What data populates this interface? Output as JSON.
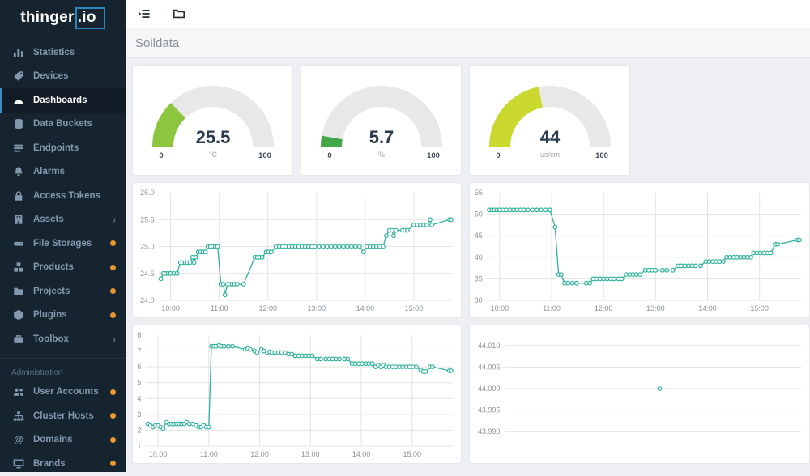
{
  "app": {
    "logo_prefix": "thinger",
    "logo_suffix": ".io"
  },
  "topbar": {
    "icons": [
      "sidebar-toggle-icon",
      "folder-icon"
    ]
  },
  "page": {
    "title": "Soildata"
  },
  "sidebar": {
    "items": [
      {
        "label": "Statistics",
        "icon": "bar-chart"
      },
      {
        "label": "Devices",
        "icon": "tag"
      },
      {
        "label": "Dashboards",
        "icon": "tachometer",
        "active": true
      },
      {
        "label": "Data Buckets",
        "icon": "database"
      },
      {
        "label": "Endpoints",
        "icon": "list"
      },
      {
        "label": "Alarms",
        "icon": "bell"
      },
      {
        "label": "Access Tokens",
        "icon": "lock"
      },
      {
        "label": "Assets",
        "icon": "building",
        "chevron": true
      },
      {
        "label": "File Storages",
        "icon": "hdd",
        "dot": true
      },
      {
        "label": "Products",
        "icon": "boxes",
        "dot": true
      },
      {
        "label": "Projects",
        "icon": "folder",
        "dot": true
      },
      {
        "label": "Plugins",
        "icon": "cube",
        "dot": true
      },
      {
        "label": "Toolbox",
        "icon": "briefcase",
        "chevron": true
      }
    ],
    "section_label": "Administration",
    "admin_items": [
      {
        "label": "User Accounts",
        "icon": "users",
        "dot": true
      },
      {
        "label": "Cluster Hosts",
        "icon": "sitemap",
        "dot": true
      },
      {
        "label": "Domains",
        "icon": "at",
        "dot": true
      },
      {
        "label": "Brands",
        "icon": "desktop",
        "dot": true
      }
    ]
  },
  "colors": {
    "accent_blue": "#3c8dbc",
    "logo_blue": "#2e86c1",
    "badge_dot": "#e8962e",
    "line": "#2fb39b",
    "grid": "#e3e3e3",
    "tick_text": "#8c939c",
    "gauge_track": "#e8e8e8",
    "gauge_value_text": "#2b3b4e"
  },
  "gauges": [
    {
      "value": "25.5",
      "unit": "°C",
      "min": "0",
      "max": "100",
      "percent": 25.5,
      "color": "#8cc63f"
    },
    {
      "value": "5.7",
      "unit": "%",
      "min": "0",
      "max": "100",
      "percent": 5.7,
      "color": "#43a747"
    },
    {
      "value": "44",
      "unit": "us/cm",
      "min": "0",
      "max": "100",
      "percent": 44,
      "color": "#cbd92e"
    }
  ],
  "chart_data": [
    {
      "type": "line",
      "name": "chart-1-temperature",
      "x_range": [
        "09:45",
        "15:48"
      ],
      "x_ticks": [
        "10:00",
        "11:00",
        "12:00",
        "13:00",
        "14:00",
        "15:00"
      ],
      "y_ticks": [
        "24.0",
        "24.5",
        "25.0",
        "25.5",
        "26.0"
      ],
      "ylim": [
        24.0,
        26.0
      ],
      "points": [
        [
          "09:48",
          24.4
        ],
        [
          "09:51",
          24.5
        ],
        [
          "09:54",
          24.5
        ],
        [
          "09:57",
          24.5
        ],
        [
          "10:00",
          24.5
        ],
        [
          "10:04",
          24.5
        ],
        [
          "10:08",
          24.5
        ],
        [
          "10:12",
          24.7
        ],
        [
          "10:15",
          24.7
        ],
        [
          "10:18",
          24.7
        ],
        [
          "10:21",
          24.7
        ],
        [
          "10:24",
          24.7
        ],
        [
          "10:27",
          24.8
        ],
        [
          "10:29",
          24.7
        ],
        [
          "10:31",
          24.8
        ],
        [
          "10:34",
          24.9
        ],
        [
          "10:37",
          24.9
        ],
        [
          "10:40",
          24.9
        ],
        [
          "10:43",
          24.9
        ],
        [
          "10:46",
          25.0
        ],
        [
          "10:49",
          25.0
        ],
        [
          "10:52",
          25.0
        ],
        [
          "10:55",
          25.0
        ],
        [
          "10:58",
          25.0
        ],
        [
          "11:02",
          24.3
        ],
        [
          "11:05",
          24.3
        ],
        [
          "11:07",
          24.1
        ],
        [
          "11:10",
          24.3
        ],
        [
          "11:13",
          24.3
        ],
        [
          "11:16",
          24.3
        ],
        [
          "11:19",
          24.3
        ],
        [
          "11:22",
          24.3
        ],
        [
          "11:30",
          24.3
        ],
        [
          "11:44",
          24.8
        ],
        [
          "11:47",
          24.8
        ],
        [
          "11:50",
          24.8
        ],
        [
          "11:53",
          24.8
        ],
        [
          "11:58",
          24.9
        ],
        [
          "12:01",
          24.9
        ],
        [
          "12:04",
          24.9
        ],
        [
          "12:10",
          25.0
        ],
        [
          "12:14",
          25.0
        ],
        [
          "12:18",
          25.0
        ],
        [
          "12:22",
          25.0
        ],
        [
          "12:26",
          25.0
        ],
        [
          "12:30",
          25.0
        ],
        [
          "12:34",
          25.0
        ],
        [
          "12:38",
          25.0
        ],
        [
          "12:42",
          25.0
        ],
        [
          "12:46",
          25.0
        ],
        [
          "12:50",
          25.0
        ],
        [
          "12:54",
          25.0
        ],
        [
          "12:58",
          25.0
        ],
        [
          "13:03",
          25.0
        ],
        [
          "13:08",
          25.0
        ],
        [
          "13:13",
          25.0
        ],
        [
          "13:18",
          25.0
        ],
        [
          "13:23",
          25.0
        ],
        [
          "13:28",
          25.0
        ],
        [
          "13:33",
          25.0
        ],
        [
          "13:38",
          25.0
        ],
        [
          "13:43",
          25.0
        ],
        [
          "13:48",
          25.0
        ],
        [
          "13:53",
          25.0
        ],
        [
          "13:58",
          24.9
        ],
        [
          "14:02",
          25.0
        ],
        [
          "14:06",
          25.0
        ],
        [
          "14:10",
          25.0
        ],
        [
          "14:14",
          25.0
        ],
        [
          "14:18",
          25.0
        ],
        [
          "14:22",
          25.0
        ],
        [
          "14:26",
          25.2
        ],
        [
          "14:30",
          25.3
        ],
        [
          "14:33",
          25.3
        ],
        [
          "14:35",
          25.2
        ],
        [
          "14:38",
          25.3
        ],
        [
          "14:46",
          25.3
        ],
        [
          "14:49",
          25.3
        ],
        [
          "14:52",
          25.3
        ],
        [
          "15:00",
          25.4
        ],
        [
          "15:04",
          25.4
        ],
        [
          "15:08",
          25.4
        ],
        [
          "15:12",
          25.4
        ],
        [
          "15:16",
          25.4
        ],
        [
          "15:20",
          25.5
        ],
        [
          "15:22",
          25.4
        ],
        [
          "15:44",
          25.5
        ],
        [
          "15:46",
          25.5
        ]
      ]
    },
    {
      "type": "line",
      "name": "chart-2-conductivity",
      "x_range": [
        "09:45",
        "15:48"
      ],
      "x_ticks": [
        "10:00",
        "11:00",
        "12:00",
        "13:00",
        "14:00",
        "15:00"
      ],
      "y_ticks": [
        "30",
        "35",
        "40",
        "45",
        "50",
        "55"
      ],
      "ylim": [
        30,
        55
      ],
      "points": [
        [
          "09:48",
          51
        ],
        [
          "09:51",
          51
        ],
        [
          "09:54",
          51
        ],
        [
          "09:57",
          51
        ],
        [
          "10:00",
          51
        ],
        [
          "10:04",
          51
        ],
        [
          "10:08",
          51
        ],
        [
          "10:12",
          51
        ],
        [
          "10:16",
          51
        ],
        [
          "10:20",
          51
        ],
        [
          "10:24",
          51
        ],
        [
          "10:28",
          51
        ],
        [
          "10:33",
          51
        ],
        [
          "10:38",
          51
        ],
        [
          "10:43",
          51
        ],
        [
          "10:48",
          51
        ],
        [
          "10:53",
          51
        ],
        [
          "10:58",
          51
        ],
        [
          "11:04",
          47
        ],
        [
          "11:08",
          36
        ],
        [
          "11:11",
          36
        ],
        [
          "11:15",
          34
        ],
        [
          "11:19",
          34
        ],
        [
          "11:24",
          34
        ],
        [
          "11:29",
          34
        ],
        [
          "11:40",
          34
        ],
        [
          "11:44",
          34
        ],
        [
          "11:48",
          35
        ],
        [
          "11:52",
          35
        ],
        [
          "11:56",
          35
        ],
        [
          "12:00",
          35
        ],
        [
          "12:04",
          35
        ],
        [
          "12:08",
          35
        ],
        [
          "12:12",
          35
        ],
        [
          "12:17",
          35
        ],
        [
          "12:21",
          35
        ],
        [
          "12:26",
          36
        ],
        [
          "12:30",
          36
        ],
        [
          "12:34",
          36
        ],
        [
          "12:38",
          36
        ],
        [
          "12:42",
          36
        ],
        [
          "12:48",
          37
        ],
        [
          "12:52",
          37
        ],
        [
          "12:56",
          37
        ],
        [
          "13:00",
          37
        ],
        [
          "13:08",
          37
        ],
        [
          "13:13",
          37
        ],
        [
          "13:20",
          37
        ],
        [
          "13:26",
          38
        ],
        [
          "13:30",
          38
        ],
        [
          "13:34",
          38
        ],
        [
          "13:38",
          38
        ],
        [
          "13:42",
          38
        ],
        [
          "13:46",
          38
        ],
        [
          "13:52",
          38
        ],
        [
          "13:58",
          39
        ],
        [
          "14:02",
          39
        ],
        [
          "14:06",
          39
        ],
        [
          "14:10",
          39
        ],
        [
          "14:14",
          39
        ],
        [
          "14:18",
          39
        ],
        [
          "14:22",
          40
        ],
        [
          "14:26",
          40
        ],
        [
          "14:30",
          40
        ],
        [
          "14:34",
          40
        ],
        [
          "14:38",
          40
        ],
        [
          "14:42",
          40
        ],
        [
          "14:46",
          40
        ],
        [
          "14:50",
          40
        ],
        [
          "14:53",
          41
        ],
        [
          "14:57",
          41
        ],
        [
          "15:01",
          41
        ],
        [
          "15:05",
          41
        ],
        [
          "15:09",
          41
        ],
        [
          "15:13",
          41
        ],
        [
          "15:18",
          43
        ],
        [
          "15:21",
          43
        ],
        [
          "15:44",
          44
        ],
        [
          "15:46",
          44
        ]
      ]
    },
    {
      "type": "line",
      "name": "chart-3-moisture",
      "x_range": [
        "09:45",
        "15:48"
      ],
      "x_ticks": [
        "10:00",
        "11:00",
        "12:00",
        "13:00",
        "14:00",
        "15:00"
      ],
      "y_ticks": [
        "1",
        "2",
        "3",
        "4",
        "5",
        "6",
        "7",
        "8"
      ],
      "ylim": [
        1,
        8
      ],
      "points": [
        [
          "09:48",
          2.4
        ],
        [
          "09:51",
          2.3
        ],
        [
          "09:54",
          2.2
        ],
        [
          "09:57",
          2.3
        ],
        [
          "10:00",
          2.3
        ],
        [
          "10:03",
          2.2
        ],
        [
          "10:06",
          2.1
        ],
        [
          "10:10",
          2.5
        ],
        [
          "10:13",
          2.4
        ],
        [
          "10:16",
          2.4
        ],
        [
          "10:19",
          2.4
        ],
        [
          "10:22",
          2.4
        ],
        [
          "10:25",
          2.4
        ],
        [
          "10:28",
          2.4
        ],
        [
          "10:31",
          2.4
        ],
        [
          "10:34",
          2.5
        ],
        [
          "10:37",
          2.4
        ],
        [
          "10:41",
          2.4
        ],
        [
          "10:45",
          2.3
        ],
        [
          "10:48",
          2.2
        ],
        [
          "10:51",
          2.2
        ],
        [
          "10:54",
          2.3
        ],
        [
          "10:57",
          2.2
        ],
        [
          "11:00",
          2.2
        ],
        [
          "11:03",
          7.3
        ],
        [
          "11:06",
          7.3
        ],
        [
          "11:09",
          7.3
        ],
        [
          "11:12",
          7.35
        ],
        [
          "11:15",
          7.3
        ],
        [
          "11:18",
          7.3
        ],
        [
          "11:23",
          7.3
        ],
        [
          "11:28",
          7.3
        ],
        [
          "11:43",
          7.1
        ],
        [
          "11:46",
          7.15
        ],
        [
          "11:49",
          7.1
        ],
        [
          "11:54",
          7.0
        ],
        [
          "11:57",
          6.9
        ],
        [
          "12:02",
          7.1
        ],
        [
          "12:05",
          7.0
        ],
        [
          "12:09",
          6.9
        ],
        [
          "12:12",
          6.95
        ],
        [
          "12:15",
          6.9
        ],
        [
          "12:18",
          6.9
        ],
        [
          "12:22",
          6.9
        ],
        [
          "12:26",
          6.9
        ],
        [
          "12:30",
          6.9
        ],
        [
          "12:34",
          6.8
        ],
        [
          "12:38",
          6.8
        ],
        [
          "12:42",
          6.7
        ],
        [
          "12:46",
          6.7
        ],
        [
          "12:50",
          6.7
        ],
        [
          "12:54",
          6.7
        ],
        [
          "12:58",
          6.7
        ],
        [
          "13:02",
          6.7
        ],
        [
          "13:08",
          6.5
        ],
        [
          "13:12",
          6.5
        ],
        [
          "13:18",
          6.5
        ],
        [
          "13:22",
          6.5
        ],
        [
          "13:26",
          6.5
        ],
        [
          "13:30",
          6.5
        ],
        [
          "13:34",
          6.5
        ],
        [
          "13:40",
          6.5
        ],
        [
          "13:44",
          6.5
        ],
        [
          "13:49",
          6.2
        ],
        [
          "13:53",
          6.2
        ],
        [
          "13:57",
          6.2
        ],
        [
          "14:01",
          6.2
        ],
        [
          "14:05",
          6.2
        ],
        [
          "14:09",
          6.2
        ],
        [
          "14:13",
          6.2
        ],
        [
          "14:17",
          6.0
        ],
        [
          "14:20",
          6.1
        ],
        [
          "14:23",
          6.0
        ],
        [
          "14:26",
          6.1
        ],
        [
          "14:29",
          6.0
        ],
        [
          "14:33",
          6.0
        ],
        [
          "14:37",
          6.0
        ],
        [
          "14:41",
          6.0
        ],
        [
          "14:45",
          6.0
        ],
        [
          "14:49",
          6.0
        ],
        [
          "14:53",
          6.0
        ],
        [
          "14:57",
          6.0
        ],
        [
          "15:01",
          6.0
        ],
        [
          "15:05",
          6.0
        ],
        [
          "15:10",
          5.8
        ],
        [
          "15:13",
          5.7
        ],
        [
          "15:16",
          5.7
        ],
        [
          "15:21",
          6.0
        ],
        [
          "15:24",
          6.0
        ],
        [
          "15:44",
          5.75
        ],
        [
          "15:46",
          5.75
        ]
      ]
    },
    {
      "type": "line",
      "name": "chart-4-conductivity-detail",
      "x_range": [
        "09:45",
        "15:48"
      ],
      "x_ticks": [],
      "y_ticks": [
        "44.010",
        "44.005",
        "44.000",
        "43.995",
        "43.990"
      ],
      "ylim": [
        43.99,
        44.01
      ],
      "y_pad": 0.12,
      "points": [
        [
          "12:55",
          44.0
        ]
      ]
    }
  ]
}
